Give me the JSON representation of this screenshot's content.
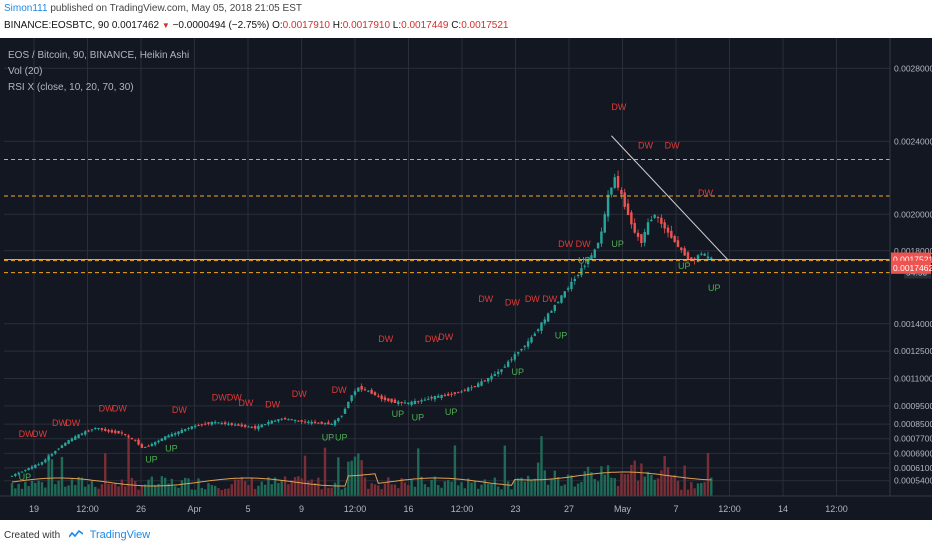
{
  "header": {
    "username": "Simon111",
    "published": "published on TradingView.com, May 05, 2018 21:05 EST",
    "symbol_line": "BINANCE:EOSBTC, 90",
    "last": "0.0017462",
    "change_arrow": "▼",
    "change": "−0.0000494 (−2.75%)",
    "o_label": "O:",
    "o": "0.0017910",
    "h_label": "H:",
    "h": "0.0017910",
    "l_label": "L:",
    "l": "0.0017449",
    "c_label": "C:",
    "c": "0.0017521"
  },
  "legend": {
    "main": "EOS / Bitcoin, 90, BINANCE, Heikin Ashi",
    "vol": "Vol (20)",
    "rsi": "RSI X (close, 10, 20, 70, 30)"
  },
  "footer": {
    "created_with": "Created with",
    "brand": "TradingView"
  },
  "colors": {
    "background": "#131722",
    "up": "#26a69a",
    "down": "#ef5350",
    "up_signal": "#4caf50",
    "dw_signal": "#e53935",
    "dashed": "#f5a623",
    "price_badge": "#ef5350"
  },
  "chart_data": {
    "type": "candlestick",
    "price_axis_labels": [
      "0.0028000",
      "0.0024000",
      "0.0020000",
      "0.0018000",
      "0.0017521",
      "0.0017462",
      "0.0014000",
      "0.0012500",
      "0.0011000",
      "0.0009500",
      "0.0008500",
      "0.0007700",
      "0.0006900",
      "0.0006100",
      "0.0005400"
    ],
    "countdown": "54:50",
    "time_axis_labels": [
      "19",
      "12:00",
      "26",
      "Apr",
      "5",
      "9",
      "12:00",
      "16",
      "12:00",
      "23",
      "27",
      "May",
      "7",
      "12:00",
      "14",
      "12:00"
    ],
    "price_series": [
      [
        0,
        0.00056
      ],
      [
        5,
        0.0006
      ],
      [
        10,
        0.00064
      ],
      [
        15,
        0.00072
      ],
      [
        18,
        0.00076
      ],
      [
        22,
        0.0008
      ],
      [
        26,
        0.00083
      ],
      [
        30,
        0.00081
      ],
      [
        34,
        0.0008
      ],
      [
        38,
        0.00076
      ],
      [
        40,
        0.00072
      ],
      [
        43,
        0.00074
      ],
      [
        47,
        0.00078
      ],
      [
        50,
        0.0008
      ],
      [
        54,
        0.00083
      ],
      [
        58,
        0.00085
      ],
      [
        62,
        0.00086
      ],
      [
        66,
        0.00085
      ],
      [
        70,
        0.00084
      ],
      [
        74,
        0.00083
      ],
      [
        78,
        0.00086
      ],
      [
        82,
        0.00088
      ],
      [
        86,
        0.00087
      ],
      [
        90,
        0.00086
      ],
      [
        94,
        0.000855
      ],
      [
        97,
        0.00085
      ],
      [
        100,
        0.0009
      ],
      [
        103,
        0.00101
      ],
      [
        105,
        0.00105
      ],
      [
        108,
        0.00103
      ],
      [
        112,
        0.00099
      ],
      [
        116,
        0.00097
      ],
      [
        120,
        0.000965
      ],
      [
        124,
        0.00098
      ],
      [
        128,
        0.001
      ],
      [
        132,
        0.00101
      ],
      [
        136,
        0.00103
      ],
      [
        140,
        0.00106
      ],
      [
        144,
        0.0011
      ],
      [
        148,
        0.00115
      ],
      [
        152,
        0.00123
      ],
      [
        156,
        0.0013
      ],
      [
        160,
        0.0014
      ],
      [
        164,
        0.0015
      ],
      [
        168,
        0.0016
      ],
      [
        172,
        0.0017
      ],
      [
        176,
        0.0018
      ],
      [
        178,
        0.0019
      ],
      [
        180,
        0.0021
      ],
      [
        182,
        0.0022
      ],
      [
        184,
        0.0021
      ],
      [
        186,
        0.002
      ],
      [
        188,
        0.0019
      ],
      [
        190,
        0.00185
      ],
      [
        192,
        0.00195
      ],
      [
        194,
        0.002
      ],
      [
        196,
        0.00195
      ],
      [
        198,
        0.0019
      ],
      [
        200,
        0.00185
      ],
      [
        202,
        0.0018
      ],
      [
        204,
        0.00176
      ],
      [
        206,
        0.00175
      ],
      [
        208,
        0.00179
      ],
      [
        210,
        0.00176
      ]
    ],
    "resistance_levels": [
      0.0023,
      0.0021,
      0.0017521,
      0.0017462
    ],
    "signals": [
      {
        "label": "DW",
        "i": 2,
        "p": 0.00078
      },
      {
        "label": "DW",
        "i": 6,
        "p": 0.00078
      },
      {
        "label": "DW",
        "i": 12,
        "p": 0.00084
      },
      {
        "label": "DW",
        "i": 16,
        "p": 0.00084
      },
      {
        "label": "DW",
        "i": 26,
        "p": 0.00092
      },
      {
        "label": "DW",
        "i": 30,
        "p": 0.00092
      },
      {
        "label": "DW",
        "i": 48,
        "p": 0.00091
      },
      {
        "label": "DWDW",
        "i": 60,
        "p": 0.00098
      },
      {
        "label": "DW",
        "i": 68,
        "p": 0.00095
      },
      {
        "label": "DW",
        "i": 76,
        "p": 0.00094
      },
      {
        "label": "DW",
        "i": 84,
        "p": 0.001
      },
      {
        "label": "DW",
        "i": 96,
        "p": 0.00102
      },
      {
        "label": "DW",
        "i": 110,
        "p": 0.0013
      },
      {
        "label": "DW",
        "i": 124,
        "p": 0.0013
      },
      {
        "label": "DW",
        "i": 128,
        "p": 0.00131
      },
      {
        "label": "DW",
        "i": 140,
        "p": 0.00152
      },
      {
        "label": "DW",
        "i": 148,
        "p": 0.0015
      },
      {
        "label": "DW DW",
        "i": 154,
        "p": 0.00152
      },
      {
        "label": "DW DW",
        "i": 164,
        "p": 0.00182
      },
      {
        "label": "DW",
        "i": 180,
        "p": 0.00257
      },
      {
        "label": "DW",
        "i": 188,
        "p": 0.00236
      },
      {
        "label": "DW",
        "i": 196,
        "p": 0.00236
      },
      {
        "label": "DW",
        "i": 206,
        "p": 0.0021
      },
      {
        "label": "UP",
        "i": 2,
        "p": 0.000545
      },
      {
        "label": "UP",
        "i": 40,
        "p": 0.00064
      },
      {
        "label": "UP",
        "i": 46,
        "p": 0.0007
      },
      {
        "label": "UP",
        "i": 93,
        "p": 0.00076
      },
      {
        "label": "UP",
        "i": 97,
        "p": 0.00076
      },
      {
        "label": "UP",
        "i": 114,
        "p": 0.00089
      },
      {
        "label": "UP",
        "i": 120,
        "p": 0.00087
      },
      {
        "label": "UP",
        "i": 130,
        "p": 0.0009
      },
      {
        "label": "UP",
        "i": 150,
        "p": 0.00112
      },
      {
        "label": "UP",
        "i": 163,
        "p": 0.00132
      },
      {
        "label": "UP",
        "i": 170,
        "p": 0.00173
      },
      {
        "label": "UP",
        "i": 180,
        "p": 0.00182
      },
      {
        "label": "UP",
        "i": 200,
        "p": 0.0017
      },
      {
        "label": "UP",
        "i": 209,
        "p": 0.00158
      }
    ]
  }
}
